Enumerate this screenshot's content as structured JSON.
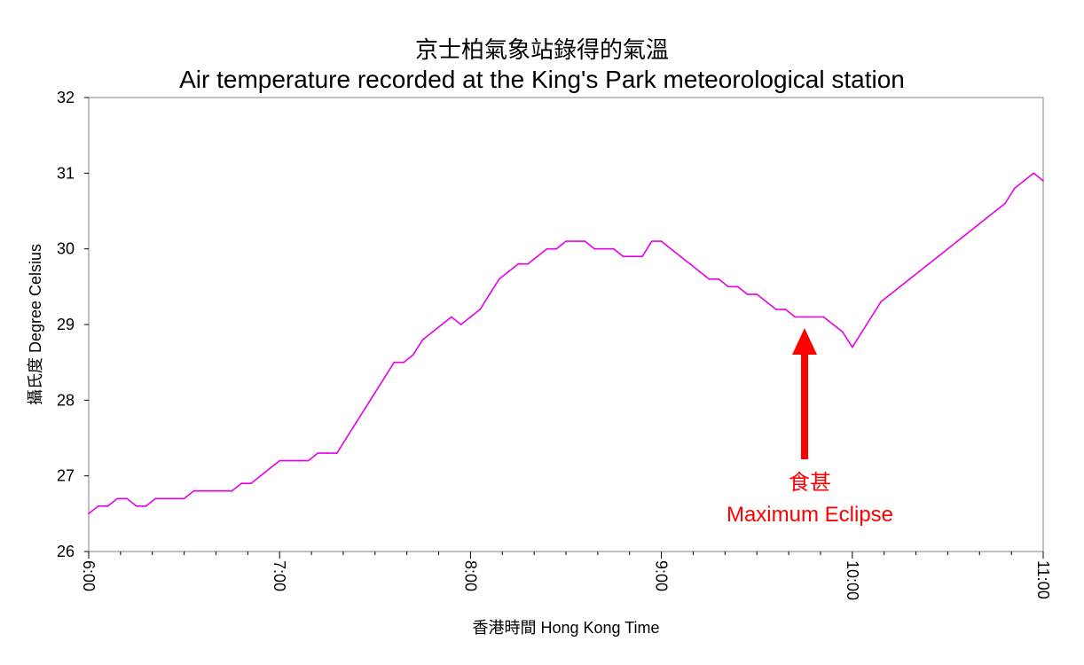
{
  "title_zh": "京士柏氣象站錄得的氣溫",
  "title_en": "Air temperature recorded at the King's Park meteorological station",
  "chart_data": {
    "type": "line",
    "title": "Air temperature recorded at the King's Park meteorological station",
    "xlabel": "香港時間 Hong Kong Time",
    "ylabel": "攝氏度 Degree Celsius",
    "x_ticks": [
      "6:00",
      "7:00",
      "8:00",
      "9:00",
      "10:00",
      "11:00"
    ],
    "y_ticks": [
      "26",
      "27",
      "28",
      "29",
      "30",
      "31",
      "32"
    ],
    "xlim": [
      "6:00",
      "11:00"
    ],
    "ylim": [
      26,
      32
    ],
    "grid": false,
    "line_color": "#e600e6",
    "series": [
      {
        "x": [
          "6:00",
          "6:03",
          "6:06",
          "6:09",
          "6:12",
          "6:15",
          "6:18",
          "6:21",
          "6:24",
          "6:27",
          "6:30",
          "6:33",
          "6:36",
          "6:39",
          "6:42",
          "6:45",
          "6:48",
          "6:51",
          "6:54",
          "6:57",
          "7:00",
          "7:03",
          "7:06",
          "7:09",
          "7:12",
          "7:15",
          "7:18",
          "7:21",
          "7:24",
          "7:27",
          "7:30",
          "7:33",
          "7:36",
          "7:39",
          "7:42",
          "7:45",
          "7:48",
          "7:51",
          "7:54",
          "7:57",
          "8:00",
          "8:03",
          "8:06",
          "8:09",
          "8:12",
          "8:15",
          "8:18",
          "8:21",
          "8:24",
          "8:27",
          "8:30",
          "8:33",
          "8:36",
          "8:39",
          "8:42",
          "8:45",
          "8:48",
          "8:51",
          "8:54",
          "8:57",
          "9:00",
          "9:03",
          "9:06",
          "9:09",
          "9:12",
          "9:15",
          "9:18",
          "9:21",
          "9:24",
          "9:27",
          "9:30",
          "9:33",
          "9:36",
          "9:39",
          "9:42",
          "9:45",
          "9:48",
          "9:51",
          "9:54",
          "9:57",
          "10:00",
          "10:03",
          "10:06",
          "10:09",
          "10:12",
          "10:15",
          "10:18",
          "10:21",
          "10:24",
          "10:27",
          "10:30",
          "10:33",
          "10:36",
          "10:39",
          "10:42",
          "10:45",
          "10:48",
          "10:51",
          "10:54",
          "10:57",
          "11:00"
        ],
        "values": [
          26.5,
          26.6,
          26.6,
          26.7,
          26.7,
          26.6,
          26.6,
          26.7,
          26.7,
          26.7,
          26.7,
          26.8,
          26.8,
          26.8,
          26.8,
          26.8,
          26.9,
          26.9,
          27.0,
          27.1,
          27.2,
          27.2,
          27.2,
          27.2,
          27.3,
          27.3,
          27.3,
          27.5,
          27.7,
          27.9,
          28.1,
          28.3,
          28.5,
          28.5,
          28.6,
          28.8,
          28.9,
          29.0,
          29.1,
          29.0,
          29.1,
          29.2,
          29.4,
          29.6,
          29.7,
          29.8,
          29.8,
          29.9,
          30.0,
          30.0,
          30.1,
          30.1,
          30.1,
          30.0,
          30.0,
          30.0,
          29.9,
          29.9,
          29.9,
          30.1,
          30.1,
          30.0,
          29.9,
          29.8,
          29.7,
          29.6,
          29.6,
          29.5,
          29.5,
          29.4,
          29.4,
          29.3,
          29.2,
          29.2,
          29.1,
          29.1,
          29.1,
          29.1,
          29.0,
          28.9,
          28.7,
          28.9,
          29.1,
          29.3,
          29.4,
          29.5,
          29.6,
          29.7,
          29.8,
          29.9,
          30.0,
          30.1,
          30.2,
          30.3,
          30.4,
          30.5,
          30.6,
          30.8,
          30.9,
          31.0,
          30.9
        ]
      }
    ],
    "annotation": {
      "label_zh": "食甚",
      "label_en": "Maximum Eclipse",
      "x": "9:45",
      "y": 29.0,
      "color": "#ff0000"
    }
  }
}
